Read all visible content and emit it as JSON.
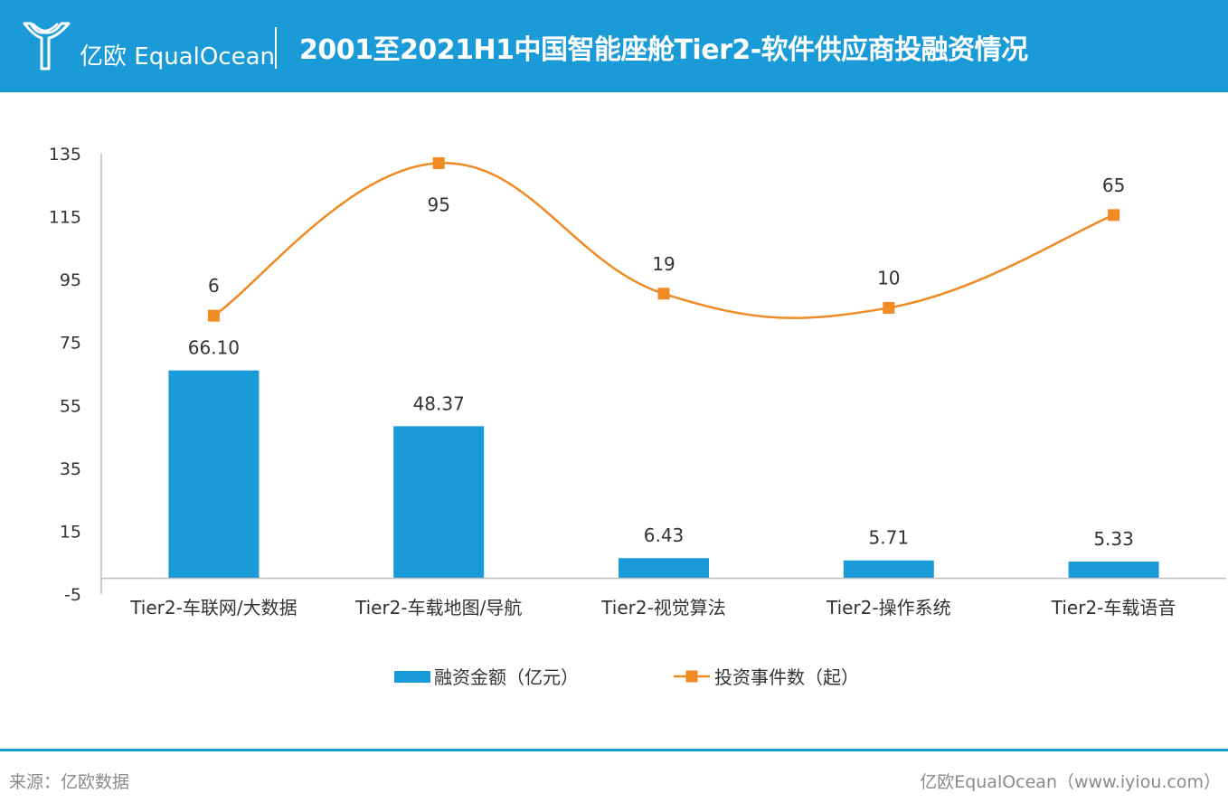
{
  "header": {
    "logo_text": "亿欧 EqualOcean",
    "title": "2001至2021H1中国智能座舱Tier2-软件供应商投融资情况"
  },
  "colors": {
    "header_bg": "#1a9bd7",
    "bar": "#1a9bd7",
    "line": "#f08a22"
  },
  "chart_data": {
    "type": "bar+line",
    "categories": [
      "Tier2-车联网/大数据",
      "Tier2-车载地图/导航",
      "Tier2-视觉算法",
      "Tier2-操作系统",
      "Tier2-车载语音"
    ],
    "yticks": [
      135,
      115,
      95,
      75,
      55,
      35,
      15,
      -5
    ],
    "ylim": [
      -5,
      135
    ],
    "series": [
      {
        "name": "融资金额（亿元）",
        "type": "bar",
        "values": [
          66.1,
          48.37,
          6.43,
          5.71,
          5.33
        ],
        "labels": [
          "66.10",
          "48.37",
          "6.43",
          "5.71",
          "5.33"
        ]
      },
      {
        "name": "投资事件数（起）",
        "type": "line",
        "values": [
          6,
          95,
          19,
          10,
          65
        ],
        "labels": [
          "6",
          "95",
          "19",
          "10",
          "65"
        ],
        "plotted_positions": [
          83.5,
          132,
          90.5,
          86,
          115.5
        ]
      }
    ],
    "legend": "bottom-center"
  },
  "footer": {
    "source": "来源：亿欧数据",
    "credit": "亿欧EqualOcean（www.iyiou.com）"
  }
}
